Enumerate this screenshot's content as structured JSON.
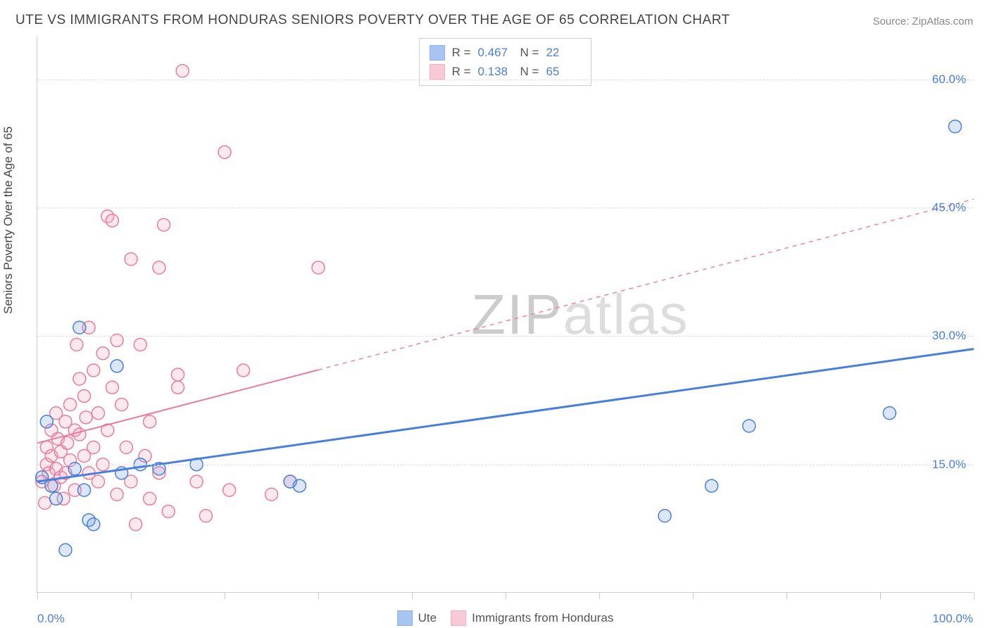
{
  "title": "UTE VS IMMIGRANTS FROM HONDURAS SENIORS POVERTY OVER THE AGE OF 65 CORRELATION CHART",
  "source": "Source: ZipAtlas.com",
  "y_axis_label": "Seniors Poverty Over the Age of 65",
  "watermark_bold": "ZIP",
  "watermark_light": "atlas",
  "chart": {
    "type": "scatter",
    "xlim": [
      0,
      100
    ],
    "ylim": [
      0,
      65
    ],
    "x_ticks_major": [
      0,
      10,
      20,
      30,
      40,
      50,
      60,
      70,
      80,
      90,
      100
    ],
    "y_grid": [
      15,
      30,
      45,
      60
    ],
    "y_tick_labels": [
      {
        "v": 15,
        "t": "15.0%"
      },
      {
        "v": 30,
        "t": "30.0%"
      },
      {
        "v": 45,
        "t": "45.0%"
      },
      {
        "v": 60,
        "t": "60.0%"
      }
    ],
    "x_tick_labels": [
      {
        "v": 0,
        "t": "0.0%",
        "align": "left"
      },
      {
        "v": 100,
        "t": "100.0%",
        "align": "right"
      }
    ],
    "background_color": "#ffffff",
    "grid_color": "#dddddd",
    "axis_color": "#cccccc",
    "marker_radius": 9,
    "marker_stroke_width": 1.5,
    "marker_fill_opacity": 0.25,
    "series": [
      {
        "key": "ute",
        "label": "Ute",
        "color": "#6fa0e8",
        "stroke": "#4a7fd8",
        "R_label": "R =",
        "R": "0.467",
        "N_label": "N =",
        "N": "22",
        "trend": {
          "x1": 0,
          "y1": 13,
          "x2": 100,
          "y2": 28.5,
          "solid_until_x": 100,
          "width": 3
        },
        "points": [
          [
            1,
            20
          ],
          [
            0.5,
            13.5
          ],
          [
            1.5,
            12.5
          ],
          [
            2,
            11
          ],
          [
            3,
            5
          ],
          [
            4,
            14.5
          ],
          [
            4.5,
            31
          ],
          [
            5,
            12
          ],
          [
            5.5,
            8.5
          ],
          [
            6,
            8
          ],
          [
            8.5,
            26.5
          ],
          [
            9,
            14
          ],
          [
            11,
            15
          ],
          [
            13,
            14.5
          ],
          [
            17,
            15
          ],
          [
            27,
            13
          ],
          [
            28,
            12.5
          ],
          [
            67,
            9
          ],
          [
            72,
            12.5
          ],
          [
            76,
            19.5
          ],
          [
            91,
            21
          ],
          [
            98,
            54.5
          ]
        ]
      },
      {
        "key": "honduras",
        "label": "Immigrants from Honduras",
        "color": "#f5a8bd",
        "stroke": "#e87d9b",
        "R_label": "R =",
        "R": "0.138",
        "N_label": "N =",
        "N": "65",
        "trend": {
          "x1": 0,
          "y1": 17.5,
          "x2": 100,
          "y2": 46,
          "solid_until_x": 30,
          "width": 2
        },
        "points": [
          [
            0.5,
            13
          ],
          [
            0.8,
            10.5
          ],
          [
            1,
            15
          ],
          [
            1,
            17
          ],
          [
            1.2,
            14
          ],
          [
            1.5,
            19
          ],
          [
            1.5,
            16
          ],
          [
            1.8,
            12.5
          ],
          [
            2,
            14.5
          ],
          [
            2,
            21
          ],
          [
            2.2,
            18
          ],
          [
            2.5,
            13.5
          ],
          [
            2.5,
            16.5
          ],
          [
            2.8,
            11
          ],
          [
            3,
            20
          ],
          [
            3,
            14
          ],
          [
            3.2,
            17.5
          ],
          [
            3.5,
            22
          ],
          [
            3.5,
            15.5
          ],
          [
            4,
            19
          ],
          [
            4,
            12
          ],
          [
            4.2,
            29
          ],
          [
            4.5,
            25
          ],
          [
            4.5,
            18.5
          ],
          [
            5,
            23
          ],
          [
            5,
            16
          ],
          [
            5.2,
            20.5
          ],
          [
            5.5,
            31
          ],
          [
            5.5,
            14
          ],
          [
            6,
            26
          ],
          [
            6,
            17
          ],
          [
            6.5,
            21
          ],
          [
            6.5,
            13
          ],
          [
            7,
            28
          ],
          [
            7,
            15
          ],
          [
            7.5,
            44
          ],
          [
            7.5,
            19
          ],
          [
            8,
            24
          ],
          [
            8,
            43.5
          ],
          [
            8.5,
            11.5
          ],
          [
            8.5,
            29.5
          ],
          [
            9,
            22
          ],
          [
            9.5,
            17
          ],
          [
            10,
            39
          ],
          [
            10,
            13
          ],
          [
            10.5,
            8
          ],
          [
            11,
            29
          ],
          [
            11.5,
            16
          ],
          [
            12,
            20
          ],
          [
            12,
            11
          ],
          [
            13,
            38
          ],
          [
            13,
            14
          ],
          [
            13.5,
            43
          ],
          [
            14,
            9.5
          ],
          [
            15,
            25.5
          ],
          [
            15,
            24
          ],
          [
            15.5,
            61
          ],
          [
            17,
            13
          ],
          [
            18,
            9
          ],
          [
            20,
            51.5
          ],
          [
            20.5,
            12
          ],
          [
            22,
            26
          ],
          [
            25,
            11.5
          ],
          [
            27,
            13
          ],
          [
            30,
            38
          ]
        ]
      }
    ]
  },
  "legend_bottom": [
    {
      "key": "ute",
      "label": "Ute"
    },
    {
      "key": "honduras",
      "label": "Immigrants from Honduras"
    }
  ]
}
